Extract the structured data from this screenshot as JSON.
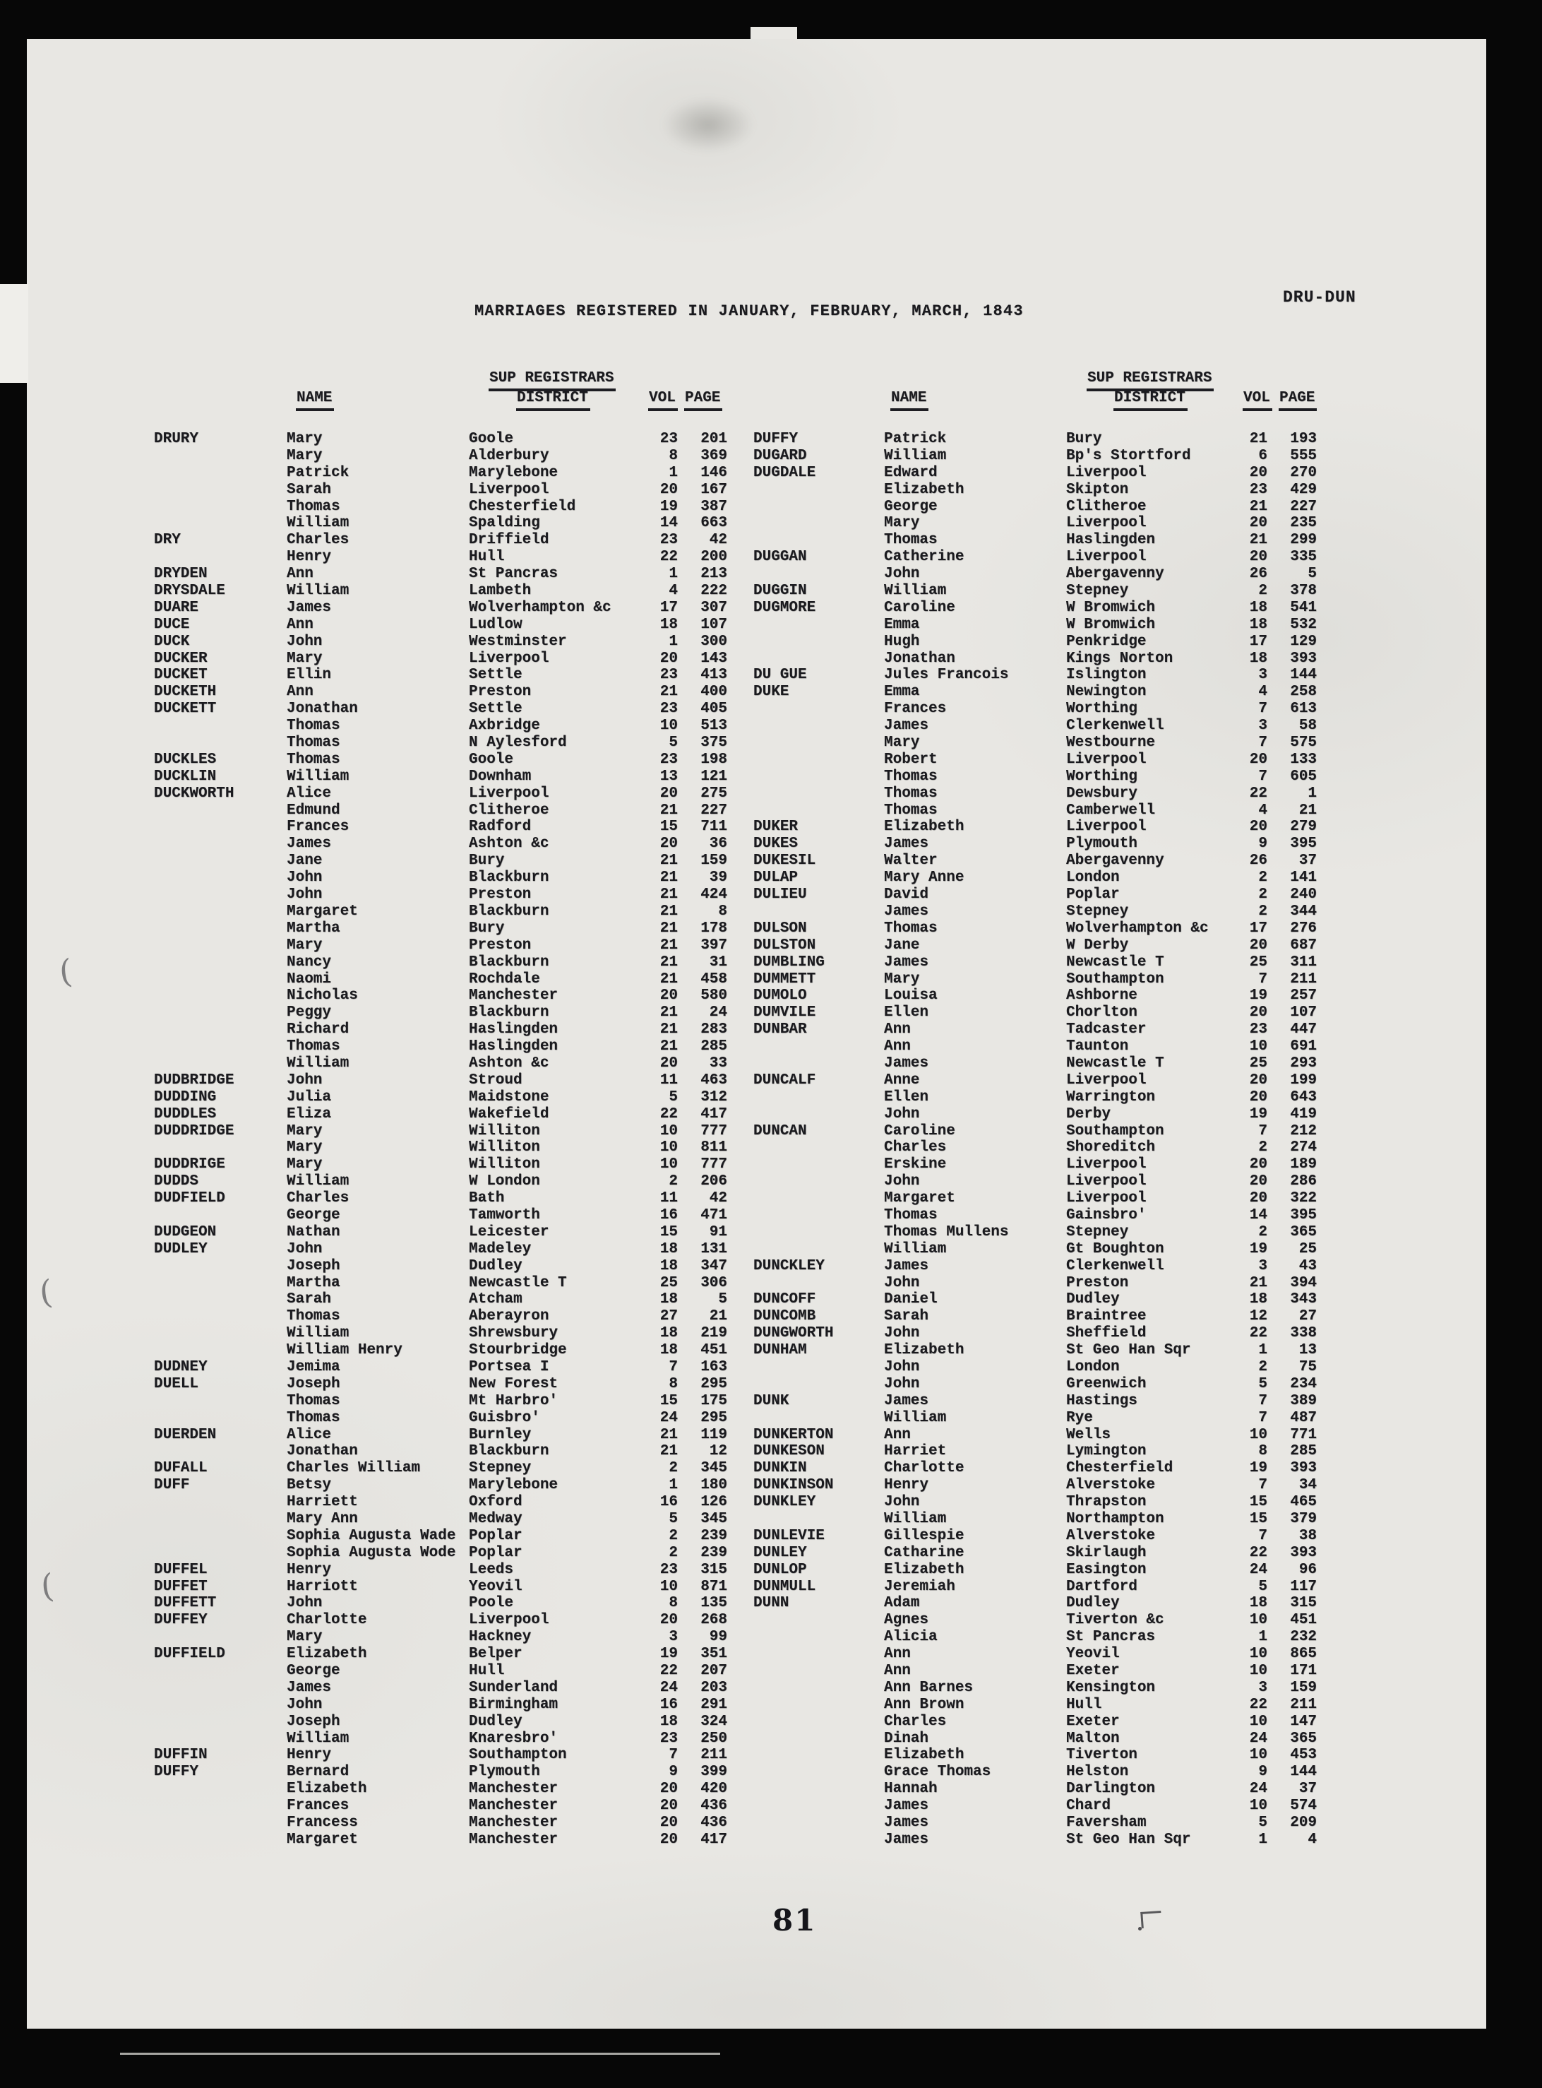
{
  "page": {
    "title": "MARRIAGES REGISTERED IN JANUARY, FEBRUARY, MARCH, 1843",
    "code": "DRU-DUN",
    "page_number": "81"
  },
  "table_headers": {
    "name": "NAME",
    "sup_registrars": "SUP REGISTRARS",
    "district": "DISTRICT",
    "vol": "VOL",
    "page": "PAGE"
  },
  "left_rows": [
    [
      "DRURY",
      "Mary",
      "Goole",
      "23",
      "201"
    ],
    [
      "",
      "Mary",
      "Alderbury",
      "8",
      "369"
    ],
    [
      "",
      "Patrick",
      "Marylebone",
      "1",
      "146"
    ],
    [
      "",
      "Sarah",
      "Liverpool",
      "20",
      "167"
    ],
    [
      "",
      "Thomas",
      "Chesterfield",
      "19",
      "387"
    ],
    [
      "",
      "William",
      "Spalding",
      "14",
      "663"
    ],
    [
      "DRY",
      "Charles",
      "Driffield",
      "23",
      "42"
    ],
    [
      "",
      "Henry",
      "Hull",
      "22",
      "200"
    ],
    [
      "DRYDEN",
      "Ann",
      "St Pancras",
      "1",
      "213"
    ],
    [
      "DRYSDALE",
      "William",
      "Lambeth",
      "4",
      "222"
    ],
    [
      "DUARE",
      "James",
      "Wolverhampton &c",
      "17",
      "307"
    ],
    [
      "DUCE",
      "Ann",
      "Ludlow",
      "18",
      "107"
    ],
    [
      "DUCK",
      "John",
      "Westminster",
      "1",
      "300"
    ],
    [
      "DUCKER",
      "Mary",
      "Liverpool",
      "20",
      "143"
    ],
    [
      "DUCKET",
      "Ellin",
      "Settle",
      "23",
      "413"
    ],
    [
      "DUCKETH",
      "Ann",
      "Preston",
      "21",
      "400"
    ],
    [
      "DUCKETT",
      "Jonathan",
      "Settle",
      "23",
      "405"
    ],
    [
      "",
      "Thomas",
      "Axbridge",
      "10",
      "513"
    ],
    [
      "",
      "Thomas",
      "N Aylesford",
      "5",
      "375"
    ],
    [
      "DUCKLES",
      "Thomas",
      "Goole",
      "23",
      "198"
    ],
    [
      "DUCKLIN",
      "William",
      "Downham",
      "13",
      "121"
    ],
    [
      "DUCKWORTH",
      "Alice",
      "Liverpool",
      "20",
      "275"
    ],
    [
      "",
      "Edmund",
      "Clitheroe",
      "21",
      "227"
    ],
    [
      "",
      "Frances",
      "Radford",
      "15",
      "711"
    ],
    [
      "",
      "James",
      "Ashton &c",
      "20",
      "36"
    ],
    [
      "",
      "Jane",
      "Bury",
      "21",
      "159"
    ],
    [
      "",
      "John",
      "Blackburn",
      "21",
      "39"
    ],
    [
      "",
      "John",
      "Preston",
      "21",
      "424"
    ],
    [
      "",
      "Margaret",
      "Blackburn",
      "21",
      "8"
    ],
    [
      "",
      "Martha",
      "Bury",
      "21",
      "178"
    ],
    [
      "",
      "Mary",
      "Preston",
      "21",
      "397"
    ],
    [
      "",
      "Nancy",
      "Blackburn",
      "21",
      "31"
    ],
    [
      "",
      "Naomi",
      "Rochdale",
      "21",
      "458"
    ],
    [
      "",
      "Nicholas",
      "Manchester",
      "20",
      "580"
    ],
    [
      "",
      "Peggy",
      "Blackburn",
      "21",
      "24"
    ],
    [
      "",
      "Richard",
      "Haslingden",
      "21",
      "283"
    ],
    [
      "",
      "Thomas",
      "Haslingden",
      "21",
      "285"
    ],
    [
      "",
      "William",
      "Ashton &c",
      "20",
      "33"
    ],
    [
      "DUDBRIDGE",
      "John",
      "Stroud",
      "11",
      "463"
    ],
    [
      "DUDDING",
      "Julia",
      "Maidstone",
      "5",
      "312"
    ],
    [
      "DUDDLES",
      "Eliza",
      "Wakefield",
      "22",
      "417"
    ],
    [
      "DUDDRIDGE",
      "Mary",
      "Williton",
      "10",
      "777"
    ],
    [
      "",
      "Mary",
      "Williton",
      "10",
      "811"
    ],
    [
      "DUDDRIGE",
      "Mary",
      "Williton",
      "10",
      "777"
    ],
    [
      "DUDDS",
      "William",
      "W London",
      "2",
      "206"
    ],
    [
      "DUDFIELD",
      "Charles",
      "Bath",
      "11",
      "42"
    ],
    [
      "",
      "George",
      "Tamworth",
      "16",
      "471"
    ],
    [
      "DUDGEON",
      "Nathan",
      "Leicester",
      "15",
      "91"
    ],
    [
      "DUDLEY",
      "John",
      "Madeley",
      "18",
      "131"
    ],
    [
      "",
      "Joseph",
      "Dudley",
      "18",
      "347"
    ],
    [
      "",
      "Martha",
      "Newcastle T",
      "25",
      "306"
    ],
    [
      "",
      "Sarah",
      "Atcham",
      "18",
      "5"
    ],
    [
      "",
      "Thomas",
      "Aberayron",
      "27",
      "21"
    ],
    [
      "",
      "William",
      "Shrewsbury",
      "18",
      "219"
    ],
    [
      "",
      "William Henry",
      "Stourbridge",
      "18",
      "451"
    ],
    [
      "DUDNEY",
      "Jemima",
      "Portsea I",
      "7",
      "163"
    ],
    [
      "DUELL",
      "Joseph",
      "New Forest",
      "8",
      "295"
    ],
    [
      "",
      "Thomas",
      "Mt Harbro'",
      "15",
      "175"
    ],
    [
      "",
      "Thomas",
      "Guisbro'",
      "24",
      "295"
    ],
    [
      "DUERDEN",
      "Alice",
      "Burnley",
      "21",
      "119"
    ],
    [
      "",
      "Jonathan",
      "Blackburn",
      "21",
      "12"
    ],
    [
      "DUFALL",
      "Charles William",
      "Stepney",
      "2",
      "345"
    ],
    [
      "DUFF",
      "Betsy",
      "Marylebone",
      "1",
      "180"
    ],
    [
      "",
      "Harriett",
      "Oxford",
      "16",
      "126"
    ],
    [
      "",
      "Mary Ann",
      "Medway",
      "5",
      "345"
    ],
    [
      "",
      "Sophia Augusta Wade",
      "Poplar",
      "2",
      "239"
    ],
    [
      "",
      "Sophia Augusta Wode",
      "Poplar",
      "2",
      "239"
    ],
    [
      "DUFFEL",
      "Henry",
      "Leeds",
      "23",
      "315"
    ],
    [
      "DUFFET",
      "Harriott",
      "Yeovil",
      "10",
      "871"
    ],
    [
      "DUFFETT",
      "John",
      "Poole",
      "8",
      "135"
    ],
    [
      "DUFFEY",
      "Charlotte",
      "Liverpool",
      "20",
      "268"
    ],
    [
      "",
      "Mary",
      "Hackney",
      "3",
      "99"
    ],
    [
      "DUFFIELD",
      "Elizabeth",
      "Belper",
      "19",
      "351"
    ],
    [
      "",
      "George",
      "Hull",
      "22",
      "207"
    ],
    [
      "",
      "James",
      "Sunderland",
      "24",
      "203"
    ],
    [
      "",
      "John",
      "Birmingham",
      "16",
      "291"
    ],
    [
      "",
      "Joseph",
      "Dudley",
      "18",
      "324"
    ],
    [
      "",
      "William",
      "Knaresbro'",
      "23",
      "250"
    ],
    [
      "DUFFIN",
      "Henry",
      "Southampton",
      "7",
      "211"
    ],
    [
      "DUFFY",
      "Bernard",
      "Plymouth",
      "9",
      "399"
    ],
    [
      "",
      "Elizabeth",
      "Manchester",
      "20",
      "420"
    ],
    [
      "",
      "Frances",
      "Manchester",
      "20",
      "436"
    ],
    [
      "",
      "Francess",
      "Manchester",
      "20",
      "436"
    ],
    [
      "",
      "Margaret",
      "Manchester",
      "20",
      "417"
    ]
  ],
  "right_rows": [
    [
      "DUFFY",
      "Patrick",
      "Bury",
      "21",
      "193"
    ],
    [
      "DUGARD",
      "William",
      "Bp's Stortford",
      "6",
      "555"
    ],
    [
      "DUGDALE",
      "Edward",
      "Liverpool",
      "20",
      "270"
    ],
    [
      "",
      "Elizabeth",
      "Skipton",
      "23",
      "429"
    ],
    [
      "",
      "George",
      "Clitheroe",
      "21",
      "227"
    ],
    [
      "",
      "Mary",
      "Liverpool",
      "20",
      "235"
    ],
    [
      "",
      "Thomas",
      "Haslingden",
      "21",
      "299"
    ],
    [
      "DUGGAN",
      "Catherine",
      "Liverpool",
      "20",
      "335"
    ],
    [
      "",
      "John",
      "Abergavenny",
      "26",
      "5"
    ],
    [
      "DUGGIN",
      "William",
      "Stepney",
      "2",
      "378"
    ],
    [
      "DUGMORE",
      "Caroline",
      "W Bromwich",
      "18",
      "541"
    ],
    [
      "",
      "Emma",
      "W Bromwich",
      "18",
      "532"
    ],
    [
      "",
      "Hugh",
      "Penkridge",
      "17",
      "129"
    ],
    [
      "",
      "Jonathan",
      "Kings Norton",
      "18",
      "393"
    ],
    [
      "DU GUE",
      "Jules Francois",
      "Islington",
      "3",
      "144"
    ],
    [
      "DUKE",
      "Emma",
      "Newington",
      "4",
      "258"
    ],
    [
      "",
      "Frances",
      "Worthing",
      "7",
      "613"
    ],
    [
      "",
      "James",
      "Clerkenwell",
      "3",
      "58"
    ],
    [
      "",
      "Mary",
      "Westbourne",
      "7",
      "575"
    ],
    [
      "",
      "Robert",
      "Liverpool",
      "20",
      "133"
    ],
    [
      "",
      "Thomas",
      "Worthing",
      "7",
      "605"
    ],
    [
      "",
      "Thomas",
      "Dewsbury",
      "22",
      "1"
    ],
    [
      "",
      "Thomas",
      "Camberwell",
      "4",
      "21"
    ],
    [
      "DUKER",
      "Elizabeth",
      "Liverpool",
      "20",
      "279"
    ],
    [
      "DUKES",
      "James",
      "Plymouth",
      "9",
      "395"
    ],
    [
      "DUKESIL",
      "Walter",
      "Abergavenny",
      "26",
      "37"
    ],
    [
      "DULAP",
      "Mary Anne",
      "London",
      "2",
      "141"
    ],
    [
      "DULIEU",
      "David",
      "Poplar",
      "2",
      "240"
    ],
    [
      "",
      "James",
      "Stepney",
      "2",
      "344"
    ],
    [
      "DULSON",
      "Thomas",
      "Wolverhampton &c",
      "17",
      "276"
    ],
    [
      "DULSTON",
      "Jane",
      "W Derby",
      "20",
      "687"
    ],
    [
      "DUMBLING",
      "James",
      "Newcastle T",
      "25",
      "311"
    ],
    [
      "DUMMETT",
      "Mary",
      "Southampton",
      "7",
      "211"
    ],
    [
      "DUMOLO",
      "Louisa",
      "Ashborne",
      "19",
      "257"
    ],
    [
      "DUMVILE",
      "Ellen",
      "Chorlton",
      "20",
      "107"
    ],
    [
      "DUNBAR",
      "Ann",
      "Tadcaster",
      "23",
      "447"
    ],
    [
      "",
      "Ann",
      "Taunton",
      "10",
      "691"
    ],
    [
      "",
      "James",
      "Newcastle T",
      "25",
      "293"
    ],
    [
      "DUNCALF",
      "Anne",
      "Liverpool",
      "20",
      "199"
    ],
    [
      "",
      "Ellen",
      "Warrington",
      "20",
      "643"
    ],
    [
      "",
      "John",
      "Derby",
      "19",
      "419"
    ],
    [
      "DUNCAN",
      "Caroline",
      "Southampton",
      "7",
      "212"
    ],
    [
      "",
      "Charles",
      "Shoreditch",
      "2",
      "274"
    ],
    [
      "",
      "Erskine",
      "Liverpool",
      "20",
      "189"
    ],
    [
      "",
      "John",
      "Liverpool",
      "20",
      "286"
    ],
    [
      "",
      "Margaret",
      "Liverpool",
      "20",
      "322"
    ],
    [
      "",
      "Thomas",
      "Gainsbro'",
      "14",
      "395"
    ],
    [
      "",
      "Thomas Mullens",
      "Stepney",
      "2",
      "365"
    ],
    [
      "",
      "William",
      "Gt Boughton",
      "19",
      "25"
    ],
    [
      "DUNCKLEY",
      "James",
      "Clerkenwell",
      "3",
      "43"
    ],
    [
      "",
      "John",
      "Preston",
      "21",
      "394"
    ],
    [
      "DUNCOFF",
      "Daniel",
      "Dudley",
      "18",
      "343"
    ],
    [
      "DUNCOMB",
      "Sarah",
      "Braintree",
      "12",
      "27"
    ],
    [
      "DUNGWORTH",
      "John",
      "Sheffield",
      "22",
      "338"
    ],
    [
      "DUNHAM",
      "Elizabeth",
      "St Geo Han Sqr",
      "1",
      "13"
    ],
    [
      "",
      "John",
      "London",
      "2",
      "75"
    ],
    [
      "",
      "John",
      "Greenwich",
      "5",
      "234"
    ],
    [
      "DUNK",
      "James",
      "Hastings",
      "7",
      "389"
    ],
    [
      "",
      "William",
      "Rye",
      "7",
      "487"
    ],
    [
      "DUNKERTON",
      "Ann",
      "Wells",
      "10",
      "771"
    ],
    [
      "DUNKESON",
      "Harriet",
      "Lymington",
      "8",
      "285"
    ],
    [
      "DUNKIN",
      "Charlotte",
      "Chesterfield",
      "19",
      "393"
    ],
    [
      "DUNKINSON",
      "Henry",
      "Alverstoke",
      "7",
      "34"
    ],
    [
      "DUNKLEY",
      "John",
      "Thrapston",
      "15",
      "465"
    ],
    [
      "",
      "William",
      "Northampton",
      "15",
      "379"
    ],
    [
      "DUNLEVIE",
      "Gillespie",
      "Alverstoke",
      "7",
      "38"
    ],
    [
      "DUNLEY",
      "Catharine",
      "Skirlaugh",
      "22",
      "393"
    ],
    [
      "DUNLOP",
      "Elizabeth",
      "Easington",
      "24",
      "96"
    ],
    [
      "DUNMULL",
      "Jeremiah",
      "Dartford",
      "5",
      "117"
    ],
    [
      "DUNN",
      "Adam",
      "Dudley",
      "18",
      "315"
    ],
    [
      "",
      "Agnes",
      "Tiverton &c",
      "10",
      "451"
    ],
    [
      "",
      "Alicia",
      "St Pancras",
      "1",
      "232"
    ],
    [
      "",
      "Ann",
      "Yeovil",
      "10",
      "865"
    ],
    [
      "",
      "Ann",
      "Exeter",
      "10",
      "171"
    ],
    [
      "",
      "Ann Barnes",
      "Kensington",
      "3",
      "159"
    ],
    [
      "",
      "Ann Brown",
      "Hull",
      "22",
      "211"
    ],
    [
      "",
      "Charles",
      "Exeter",
      "10",
      "147"
    ],
    [
      "",
      "Dinah",
      "Malton",
      "24",
      "365"
    ],
    [
      "",
      "Elizabeth",
      "Tiverton",
      "10",
      "453"
    ],
    [
      "",
      "Grace Thomas",
      "Helston",
      "9",
      "144"
    ],
    [
      "",
      "Hannah",
      "Darlington",
      "24",
      "37"
    ],
    [
      "",
      "James",
      "Chard",
      "10",
      "574"
    ],
    [
      "",
      "James",
      "Faversham",
      "5",
      "209"
    ],
    [
      "",
      "James",
      "St Geo Han Sqr",
      "1",
      "4"
    ]
  ]
}
